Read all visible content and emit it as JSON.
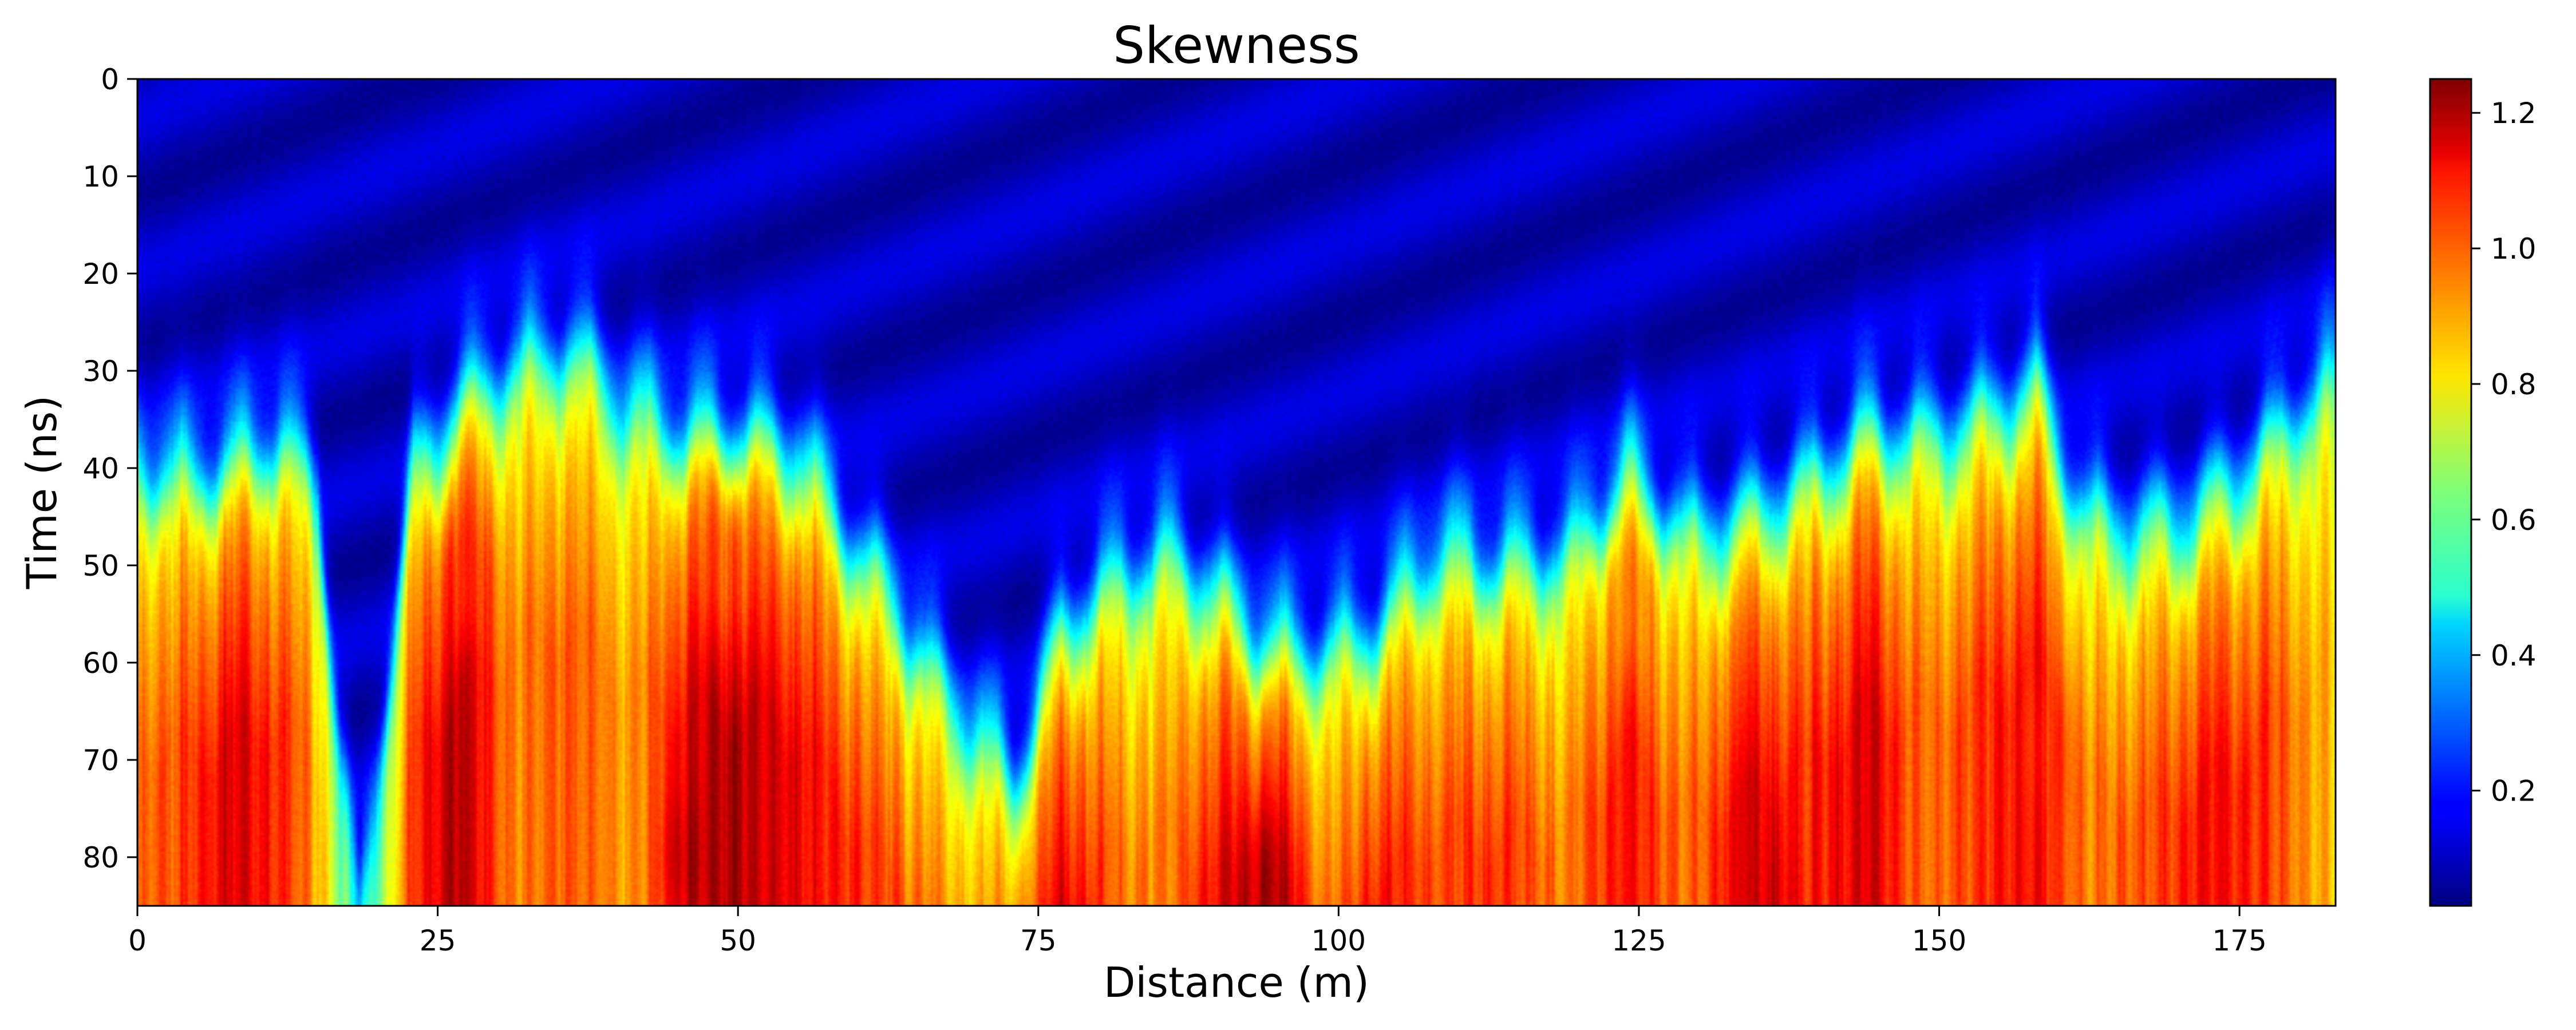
{
  "chart_data": {
    "type": "heatmap",
    "title": "Skewness",
    "xlabel": "Distance (m)",
    "ylabel": "Time (ns)",
    "xlim": [
      0,
      183
    ],
    "ylim": [
      85,
      0
    ],
    "x_ticks": [
      0,
      25,
      50,
      75,
      100,
      125,
      150,
      175
    ],
    "y_ticks": [
      0,
      10,
      20,
      30,
      40,
      50,
      60,
      70,
      80
    ],
    "colormap": "jet",
    "colorbar": {
      "range": [
        0.03,
        1.25
      ],
      "ticks": [
        0.2,
        0.4,
        0.6,
        0.8,
        1.0,
        1.2
      ],
      "tick_labels": [
        "0.2",
        "0.4",
        "0.6",
        "0.8",
        "1.0",
        "1.2"
      ],
      "placement": "right"
    },
    "grid": false,
    "profile": {
      "description_x_nodes": [
        0,
        3,
        8,
        12,
        15,
        17,
        18.5,
        20,
        23,
        27,
        31,
        36,
        41,
        46,
        50,
        55,
        60,
        64,
        67,
        70,
        73,
        77,
        82,
        86,
        91,
        95,
        99,
        103,
        108,
        113,
        119,
        124,
        129,
        134,
        139,
        144,
        149,
        154,
        158,
        162,
        167,
        172,
        177,
        180,
        183
      ],
      "transition_time_ns": [
        38,
        40,
        39,
        36,
        42,
        70,
        85,
        70,
        40,
        33,
        29,
        27,
        33,
        36,
        36,
        38,
        48,
        55,
        62,
        66,
        72,
        56,
        50,
        48,
        54,
        58,
        58,
        56,
        48,
        49,
        48,
        40,
        46,
        45,
        41,
        36,
        36,
        34,
        31,
        44,
        46,
        44,
        38,
        33,
        30
      ],
      "deep_skewness": [
        0.85,
        0.9,
        1.05,
        0.95,
        0.8,
        0.55,
        0.35,
        0.55,
        0.95,
        1.1,
        0.85,
        0.9,
        0.8,
        1.05,
        1.1,
        1.0,
        0.95,
        0.9,
        0.85,
        0.85,
        0.9,
        1.05,
        0.85,
        0.85,
        1.05,
        1.1,
        0.85,
        1.0,
        0.9,
        0.95,
        0.85,
        1.0,
        0.85,
        1.05,
        0.95,
        1.05,
        0.85,
        0.95,
        1.0,
        0.85,
        0.9,
        1.0,
        0.95,
        0.85,
        0.75
      ],
      "shallow_background": 0.1
    },
    "hotspots": [
      {
        "x": 27.5,
        "t": 52,
        "value": 1.05
      },
      {
        "x": 49,
        "t": 50,
        "value": 1.0
      },
      {
        "x": 46,
        "t": 80,
        "value": 1.2
      },
      {
        "x": 94,
        "t": 82,
        "value": 1.2
      },
      {
        "x": 124.5,
        "t": 54,
        "value": 0.95
      },
      {
        "x": 136,
        "t": 84,
        "value": 1.15
      },
      {
        "x": 159,
        "t": 68,
        "value": 1.05
      }
    ]
  }
}
